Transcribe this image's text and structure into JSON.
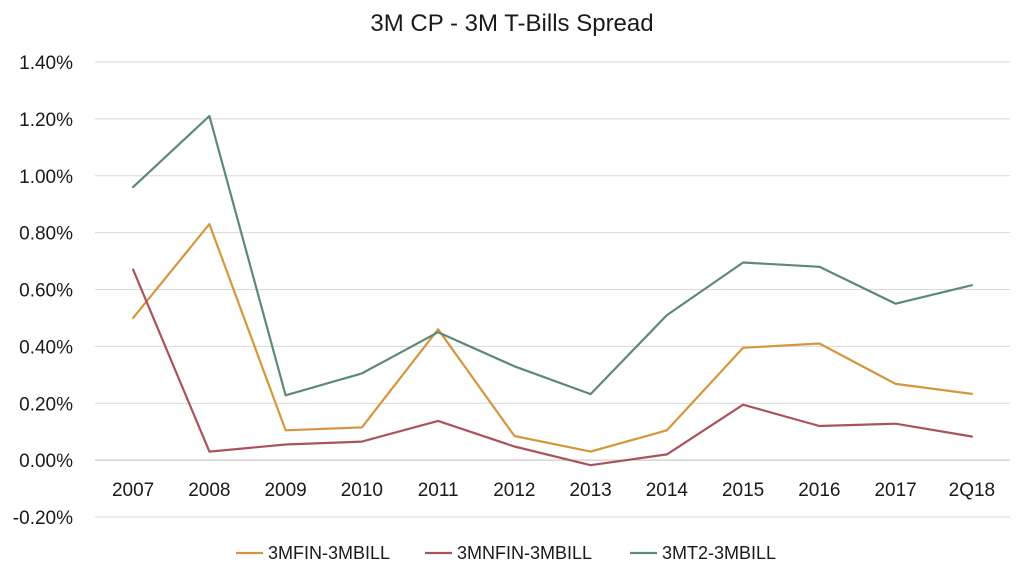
{
  "chart_data": {
    "type": "line",
    "title": "3M CP - 3M T-Bills Spread",
    "xlabel": "",
    "ylabel": "",
    "categories": [
      "2007",
      "2008",
      "2009",
      "2010",
      "2011",
      "2012",
      "2013",
      "2014",
      "2015",
      "2016",
      "2017",
      "2Q18"
    ],
    "ylim": [
      -0.002,
      0.014
    ],
    "y_ticks": [
      -0.002,
      0.0,
      0.002,
      0.004,
      0.006,
      0.008,
      0.01,
      0.012,
      0.014
    ],
    "y_tick_labels": [
      "-0.20%",
      "0.00%",
      "0.20%",
      "0.40%",
      "0.60%",
      "0.80%",
      "1.00%",
      "1.20%",
      "1.40%"
    ],
    "grid": true,
    "legend_position": "bottom",
    "series": [
      {
        "name": "3MFIN-3MBILL",
        "color": "#d4973d",
        "values": [
          0.005,
          0.0083,
          0.00105,
          0.00115,
          0.0046,
          0.00085,
          0.0003,
          0.00105,
          0.00395,
          0.0041,
          0.00268,
          0.00233
        ]
      },
      {
        "name": "3MNFIN-3MBILL",
        "color": "#a9545a",
        "values": [
          0.0067,
          0.0003,
          0.00055,
          0.00065,
          0.00138,
          0.00048,
          -0.00018,
          0.0002,
          0.00195,
          0.0012,
          0.00128,
          0.00083
        ]
      },
      {
        "name": "3MT2-3MBILL",
        "color": "#5e8a73",
        "values": [
          0.0096,
          0.0121,
          0.00228,
          0.00305,
          0.0045,
          0.0033,
          0.00232,
          0.0051,
          0.00695,
          0.0068,
          0.0055,
          0.00615
        ]
      }
    ]
  }
}
